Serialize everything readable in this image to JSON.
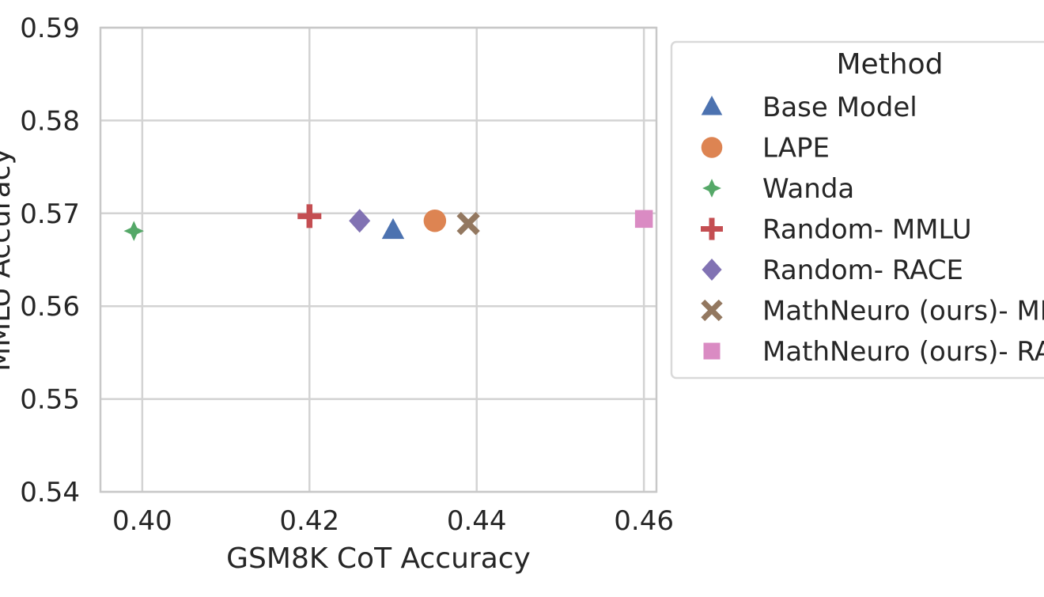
{
  "chart_data": {
    "type": "scatter",
    "title": "",
    "xlabel": "GSM8K CoT Accuracy",
    "ylabel": "MMLU Accuracy",
    "xlim": [
      0.395,
      0.4615
    ],
    "ylim": [
      0.54,
      0.59
    ],
    "xticks": [
      "0.40",
      "0.42",
      "0.44",
      "0.46"
    ],
    "yticks": [
      "0.54",
      "0.55",
      "0.56",
      "0.57",
      "0.58",
      "0.59"
    ],
    "grid": true,
    "legend": {
      "title": "Method",
      "placement": "outside-right"
    },
    "series": [
      {
        "name": "Base Model",
        "marker": "triangle",
        "color": "#4C72B0",
        "x": 0.43,
        "y": 0.5682
      },
      {
        "name": "LAPE",
        "marker": "circle",
        "color": "#DD8452",
        "x": 0.435,
        "y": 0.5692
      },
      {
        "name": "Wanda",
        "marker": "star",
        "color": "#55A868",
        "x": 0.399,
        "y": 0.5681
      },
      {
        "name": "Random- MMLU",
        "marker": "plus",
        "color": "#C44E52",
        "x": 0.42,
        "y": 0.5697
      },
      {
        "name": "Random- RACE",
        "marker": "diamond",
        "color": "#8172B3",
        "x": 0.426,
        "y": 0.5692
      },
      {
        "name": "MathNeuro (ours)- MMLU",
        "marker": "x",
        "color": "#937860",
        "x": 0.439,
        "y": 0.5689
      },
      {
        "name": "MathNeuro (ours)- RACE",
        "marker": "square",
        "color": "#DA8BC3",
        "x": 0.46,
        "y": 0.5694
      }
    ]
  }
}
